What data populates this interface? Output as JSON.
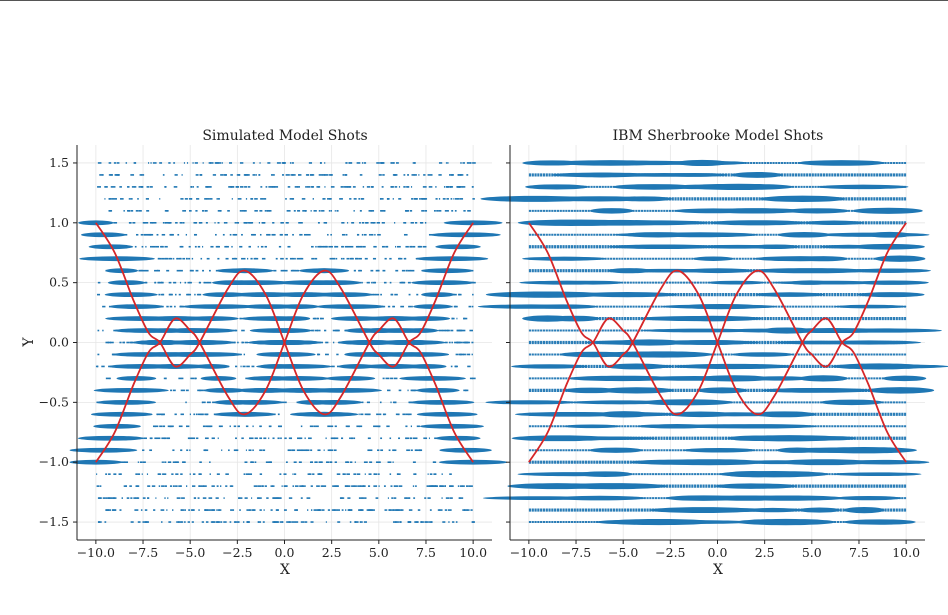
{
  "figure": {
    "ylabel": "Y",
    "captions": [
      "",
      ""
    ]
  },
  "chart_data": [
    {
      "type": "scatter",
      "title": "Simulated Model Shots",
      "xlabel": "X",
      "ylabel": "Y",
      "xlim": [
        -11,
        11
      ],
      "ylim": [
        -1.65,
        1.65
      ],
      "xticks": [
        -10,
        -7.5,
        -5,
        -2.5,
        0,
        2.5,
        5,
        7.5,
        10
      ],
      "xtick_labels": [
        "−10.0",
        "−7.5",
        "−5.0",
        "−2.5",
        "0.0",
        "2.5",
        "5.0",
        "7.5",
        "10.0"
      ],
      "yticks": [
        -1.5,
        -1,
        -0.5,
        0,
        0.5,
        1,
        1.5
      ],
      "ytick_labels": [
        "−1.5",
        "−1.0",
        "−0.5",
        "0.0",
        "0.5",
        "1.0",
        "1.5"
      ],
      "grid": true,
      "scatter_color": "#1f77b4",
      "curve_color": "#d62728",
      "x_range": [
        -10,
        10
      ],
      "measured_levels": [
        -1.5,
        -1.4,
        -1.3,
        -1.2,
        -1.1,
        -1.0,
        -0.9,
        -0.8,
        -0.7,
        -0.6,
        -0.5,
        -0.4,
        -0.3,
        -0.2,
        -0.1,
        0.0,
        0.1,
        0.2,
        0.3,
        0.4,
        0.5,
        0.6,
        0.7,
        0.8,
        0.9,
        1.0,
        1.1,
        1.2,
        1.3,
        1.4,
        1.5
      ],
      "curves": [
        {
          "x": [
            -10,
            -9,
            -8,
            -7.2,
            -6.6,
            -5.8,
            -5,
            -4.5,
            -3,
            -2.1,
            -1,
            0,
            1,
            2.1,
            3,
            4.5,
            5,
            5.8,
            6.6,
            7.2,
            8,
            9,
            10
          ],
          "y": [
            1.0,
            0.75,
            0.35,
            0.08,
            0.0,
            -0.2,
            -0.1,
            0.0,
            0.45,
            0.6,
            0.4,
            0.0,
            -0.4,
            -0.6,
            -0.45,
            0.0,
            0.1,
            0.2,
            0.0,
            -0.08,
            -0.35,
            -0.75,
            -1.0
          ]
        },
        {
          "x": [
            -10,
            -9,
            -8,
            -7.2,
            -6.6,
            -5.8,
            -5,
            -4.5,
            -3,
            -2.1,
            -1,
            0,
            1,
            2.1,
            3,
            4.5,
            5,
            5.8,
            6.6,
            7.2,
            8,
            9,
            10
          ],
          "y": [
            -1.0,
            -0.75,
            -0.35,
            -0.08,
            0.0,
            0.2,
            0.1,
            0.0,
            -0.45,
            -0.6,
            -0.4,
            0.0,
            0.4,
            0.6,
            0.45,
            0.0,
            -0.1,
            -0.2,
            0.0,
            0.08,
            0.35,
            0.75,
            1.0
          ]
        }
      ]
    },
    {
      "type": "scatter",
      "title": "IBM Sherbrooke Model Shots",
      "xlabel": "X",
      "ylabel": "",
      "xlim": [
        -11,
        11
      ],
      "ylim": [
        -1.65,
        1.65
      ],
      "xticks": [
        -10,
        -7.5,
        -5,
        -2.5,
        0,
        2.5,
        5,
        7.5,
        10
      ],
      "xtick_labels": [
        "−10.0",
        "−7.5",
        "−5.0",
        "−2.5",
        "0.0",
        "2.5",
        "5.0",
        "7.5",
        "10.0"
      ],
      "yticks": [
        -1.5,
        -1,
        -0.5,
        0,
        0.5,
        1,
        1.5
      ],
      "ytick_labels": [
        "",
        "",
        "",
        "",
        "",
        "",
        ""
      ],
      "grid": true,
      "scatter_color": "#1f77b4",
      "curve_color": "#d62728",
      "x_range": [
        -10,
        10
      ],
      "measured_levels": [
        -1.5,
        -1.4,
        -1.3,
        -1.2,
        -1.1,
        -1.0,
        -0.9,
        -0.8,
        -0.7,
        -0.6,
        -0.5,
        -0.4,
        -0.3,
        -0.2,
        -0.1,
        0.0,
        0.1,
        0.2,
        0.3,
        0.4,
        0.5,
        0.6,
        0.7,
        0.8,
        0.9,
        1.0,
        1.1,
        1.2,
        1.3,
        1.4,
        1.5
      ],
      "curves": [
        {
          "x": [
            -10,
            -9,
            -8,
            -7.2,
            -6.6,
            -5.8,
            -5,
            -4.5,
            -3,
            -2.1,
            -1,
            0,
            1,
            2.1,
            3,
            4.5,
            5,
            5.8,
            6.6,
            7.2,
            8,
            9,
            10
          ],
          "y": [
            1.0,
            0.75,
            0.35,
            0.08,
            0.0,
            -0.2,
            -0.1,
            0.0,
            0.45,
            0.6,
            0.4,
            0.0,
            -0.4,
            -0.6,
            -0.45,
            0.0,
            0.1,
            0.2,
            0.0,
            -0.08,
            -0.35,
            -0.75,
            -1.0
          ]
        },
        {
          "x": [
            -10,
            -9,
            -8,
            -7.2,
            -6.6,
            -5.8,
            -5,
            -4.5,
            -3,
            -2.1,
            -1,
            0,
            1,
            2.1,
            3,
            4.5,
            5,
            5.8,
            6.6,
            7.2,
            8,
            9,
            10
          ],
          "y": [
            -1.0,
            -0.75,
            -0.35,
            -0.08,
            0.0,
            0.2,
            0.1,
            0.0,
            -0.45,
            -0.6,
            -0.4,
            0.0,
            0.4,
            0.6,
            0.45,
            0.0,
            -0.1,
            -0.2,
            0.0,
            0.08,
            0.35,
            0.75,
            1.0
          ]
        }
      ]
    }
  ]
}
